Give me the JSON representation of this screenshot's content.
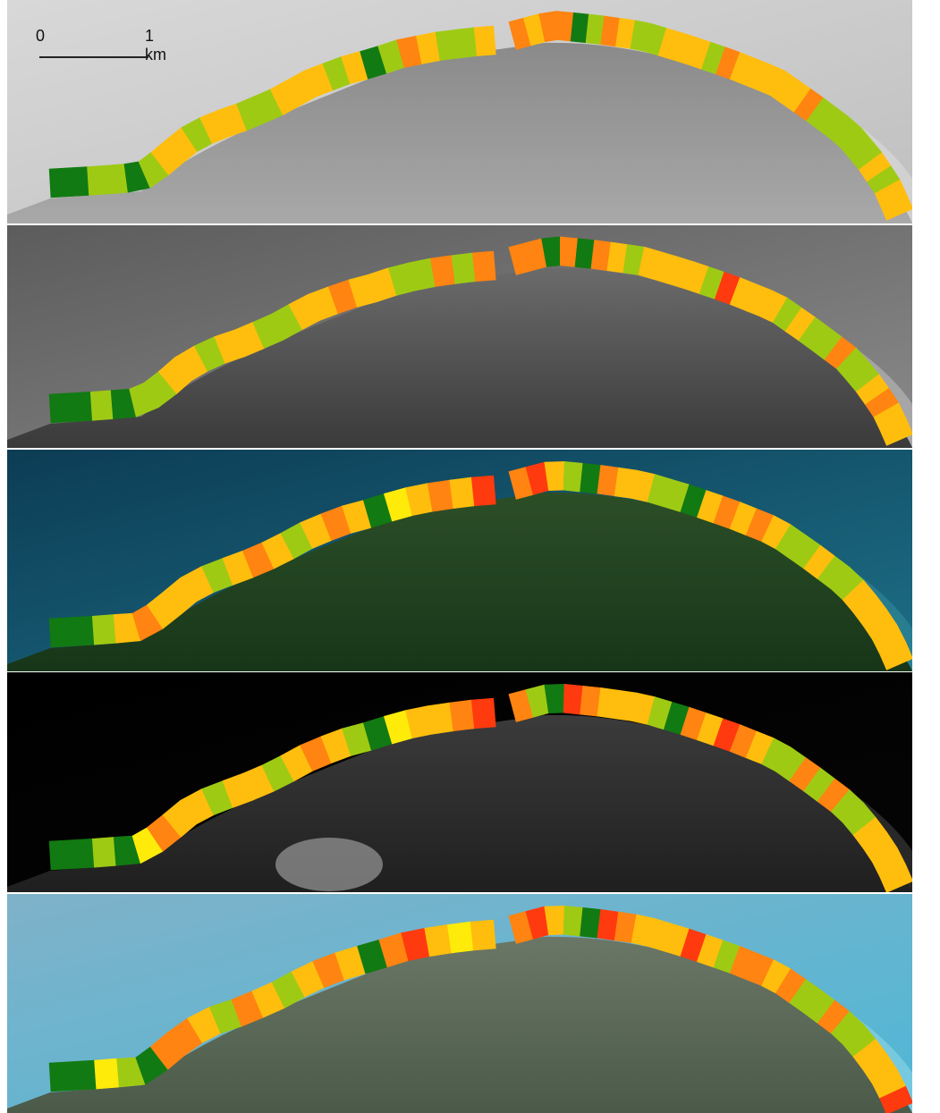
{
  "scale_bar": {
    "start_label": "0",
    "end_label": "1 km"
  },
  "legend_colors": {
    "dark_green": "#127a12",
    "light_green": "#9fca14",
    "yellow": "#ffeb0a",
    "amber": "#ffbe0d",
    "orange": "#ff8411",
    "red": "#ff3a0e"
  },
  "panels": [
    {
      "name": "panel-1",
      "style": "grayscale-light",
      "segments": [
        "dark_green",
        "dark_green",
        "light_green",
        "light_green",
        "dark_green",
        "light_green",
        "amber",
        "amber",
        "light_green",
        "amber",
        "amber",
        "light_green",
        "light_green",
        "amber",
        "amber",
        "amber",
        "light_green",
        "amber",
        "dark_green",
        "light_green",
        "orange",
        "amber",
        "light_green",
        "light_green",
        "amber",
        "orange",
        "amber",
        "orange",
        "orange",
        "dark_green",
        "light_green",
        "orange",
        "amber",
        "light_green",
        "light_green",
        "amber",
        "amber",
        "amber",
        "light_green",
        "orange",
        "amber",
        "amber",
        "amber",
        "amber",
        "amber",
        "orange",
        "light_green",
        "light_green",
        "light_green",
        "light_green",
        "light_green",
        "amber",
        "light_green",
        "amber",
        "amber"
      ]
    },
    {
      "name": "panel-2",
      "style": "grayscale-dark",
      "segments": [
        "dark_green",
        "dark_green",
        "light_green",
        "dark_green",
        "light_green",
        "light_green",
        "amber",
        "amber",
        "light_green",
        "amber",
        "amber",
        "light_green",
        "light_green",
        "amber",
        "amber",
        "orange",
        "amber",
        "amber",
        "light_green",
        "light_green",
        "orange",
        "light_green",
        "orange",
        "orange",
        "orange",
        "dark_green",
        "orange",
        "dark_green",
        "orange",
        "amber",
        "light_green",
        "amber",
        "amber",
        "amber",
        "amber",
        "light_green",
        "red",
        "amber",
        "amber",
        "amber",
        "light_green",
        "amber",
        "light_green",
        "light_green",
        "orange",
        "light_green",
        "light_green",
        "amber",
        "orange",
        "amber",
        "amber"
      ]
    },
    {
      "name": "panel-3",
      "style": "true-color-dark",
      "segments": [
        "dark_green",
        "dark_green",
        "light_green",
        "amber",
        "orange",
        "amber",
        "amber",
        "amber",
        "light_green",
        "amber",
        "orange",
        "amber",
        "light_green",
        "amber",
        "orange",
        "amber",
        "dark_green",
        "yellow",
        "amber",
        "orange",
        "amber",
        "red",
        "orange",
        "red",
        "amber",
        "light_green",
        "dark_green",
        "orange",
        "amber",
        "amber",
        "light_green",
        "light_green",
        "dark_green",
        "amber",
        "orange",
        "amber",
        "orange",
        "amber",
        "light_green",
        "light_green",
        "amber",
        "light_green",
        "light_green",
        "amber",
        "amber",
        "amber",
        "amber",
        "amber"
      ]
    },
    {
      "name": "panel-4",
      "style": "panchromatic-black",
      "segments": [
        "dark_green",
        "dark_green",
        "light_green",
        "dark_green",
        "yellow",
        "orange",
        "amber",
        "amber",
        "light_green",
        "amber",
        "amber",
        "light_green",
        "amber",
        "orange",
        "amber",
        "light_green",
        "dark_green",
        "yellow",
        "amber",
        "amber",
        "orange",
        "red",
        "orange",
        "light_green",
        "dark_green",
        "red",
        "orange",
        "amber",
        "amber",
        "amber",
        "light_green",
        "dark_green",
        "orange",
        "amber",
        "red",
        "orange",
        "amber",
        "light_green",
        "light_green",
        "orange",
        "light_green",
        "orange",
        "light_green",
        "light_green",
        "amber",
        "amber",
        "amber",
        "amber"
      ]
    },
    {
      "name": "panel-5",
      "style": "true-color-bright",
      "segments": [
        "dark_green",
        "dark_green",
        "yellow",
        "light_green",
        "dark_green",
        "orange",
        "orange",
        "amber",
        "light_green",
        "orange",
        "amber",
        "light_green",
        "amber",
        "orange",
        "amber",
        "dark_green",
        "orange",
        "red",
        "amber",
        "yellow",
        "amber",
        "orange",
        "red",
        "amber",
        "light_green",
        "dark_green",
        "red",
        "orange",
        "amber",
        "amber",
        "amber",
        "red",
        "amber",
        "light_green",
        "orange",
        "orange",
        "amber",
        "orange",
        "light_green",
        "light_green",
        "orange",
        "light_green",
        "light_green",
        "amber",
        "amber",
        "amber",
        "red"
      ]
    }
  ]
}
